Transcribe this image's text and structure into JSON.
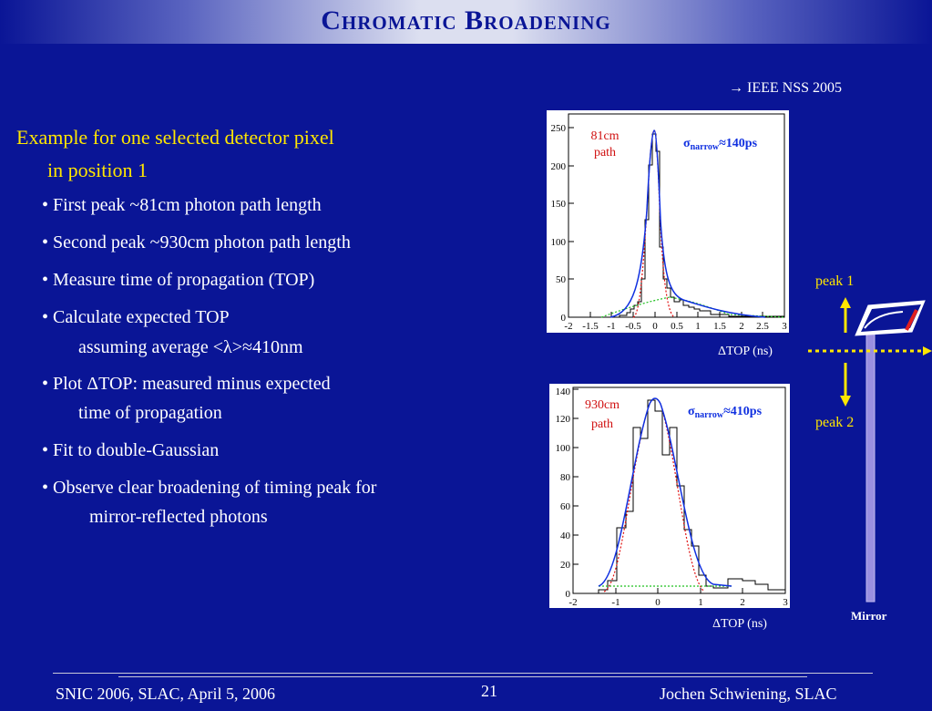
{
  "slide": {
    "title": "Chromatic Broadening",
    "reference": "→ IEEE NSS 2005",
    "heading_line1": "Example for one selected detector pixel",
    "heading_line2": "in position 1",
    "bullets": [
      "• First peak ~81cm photon path length",
      "• Second peak ~930cm photon path length",
      "• Measure time of propagation (TOP)",
      "• Calculate expected TOP",
      "assuming average <λ>≈410nm",
      "• Plot ΔTOP: measured minus expected",
      "time of propagation",
      "• Fit to double-Gaussian",
      "• Observe clear broadening of timing peak for",
      "mirror-reflected photons"
    ]
  },
  "plot1": {
    "path_label_1": "81cm",
    "path_label_2": "path",
    "sigma_symbol": "σ",
    "sigma_sub": "narrow",
    "sigma_value": "≈140ps",
    "xlabel": "ΔTOP (ns)",
    "xticks": [
      "-2",
      "-1.5",
      "-1",
      "-0.5",
      "0",
      "0.5",
      "1",
      "1.5",
      "2",
      "2.5",
      "3"
    ],
    "yticks": [
      "0",
      "50",
      "100",
      "150",
      "200",
      "250"
    ]
  },
  "plot2": {
    "path_label_1": "930cm",
    "path_label_2": "path",
    "sigma_symbol": "σ",
    "sigma_sub": "narrow",
    "sigma_value": "≈410ps",
    "xlabel": "ΔTOP (ns)",
    "xticks": [
      "-2",
      "-1",
      "0",
      "1",
      "2",
      "3"
    ],
    "yticks": [
      "0",
      "20",
      "40",
      "60",
      "80",
      "100",
      "120",
      "140"
    ]
  },
  "diagram": {
    "peak1": "peak 1",
    "peak2": "peak 2",
    "mirror": "Mirror"
  },
  "footer": {
    "left": "SNIC 2006, SLAC, April 5, 2006",
    "page": "21",
    "right": "Jochen Schwiening, SLAC"
  },
  "colors": {
    "background": "#0a1596",
    "heading": "#ffe600",
    "fit_total": "#1030e0",
    "fit_narrow": "#e01010",
    "fit_wide": "#20c020"
  }
}
